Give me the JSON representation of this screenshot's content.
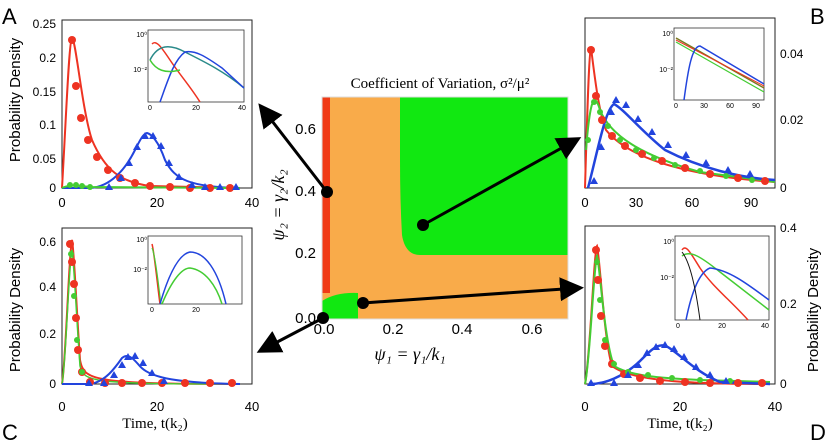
{
  "figure": {
    "center": {
      "title": "Coefficient of Variation, σ²/μ²",
      "xlabel": "ψ₁ = γ₁/k₁",
      "ylabel": "ψ₂ = γ₂/k₂",
      "x_ticks": [
        "0.0",
        "0.2",
        "0.4",
        "0.6"
      ],
      "y_ticks": [
        "0.0",
        "0.2",
        "0.4",
        "0.6"
      ],
      "colors": {
        "orange": "#f9ab4a",
        "green": "#11e811",
        "red": "#f03a16"
      }
    },
    "panels": [
      {
        "letter": "A",
        "ylabel": "Probability Density",
        "y_ticks": [
          "0",
          "0.05",
          "0.1",
          "0.15",
          "0.2",
          "0.25"
        ],
        "x_ticks": [
          "0",
          "20",
          "40"
        ],
        "xlabel": ""
      },
      {
        "letter": "B",
        "ylabel": "",
        "y_ticks": [
          "0",
          "0.02",
          "0.04"
        ],
        "x_ticks": [
          "0",
          "30",
          "60",
          "90"
        ],
        "xlabel": ""
      },
      {
        "letter": "C",
        "ylabel": "Probability Density",
        "y_ticks": [
          "0",
          "0.2",
          "0.4",
          "0.6"
        ],
        "x_ticks": [
          "0",
          "20",
          "40"
        ],
        "xlabel": "Time, t(k₂)"
      },
      {
        "letter": "D",
        "ylabel": "Probability Density",
        "y_ticks": [
          "0",
          "0.2",
          "0.4"
        ],
        "x_ticks": [
          "0",
          "20",
          "40"
        ],
        "xlabel": "Time, t(k₂)"
      }
    ],
    "insets": {
      "A": {
        "y_ticks": [
          "10⁰",
          "10⁻²"
        ],
        "x_ticks": [
          "0",
          "20",
          "40"
        ]
      },
      "B": {
        "y_ticks": [
          "10⁰",
          "10⁻²"
        ],
        "x_ticks": [
          "0",
          "30",
          "60",
          "90"
        ]
      },
      "C": {
        "y_ticks": [
          "10⁰",
          "10⁻²"
        ],
        "x_ticks": [
          "0",
          "20"
        ]
      },
      "D": {
        "y_ticks": [
          "10⁰",
          "10⁻²"
        ],
        "x_ticks": [
          "0",
          "20",
          "40"
        ]
      }
    },
    "series_colors": {
      "red": "#ee3322",
      "green": "#44cc33",
      "blue": "#2244dd",
      "black": "#111111"
    }
  }
}
